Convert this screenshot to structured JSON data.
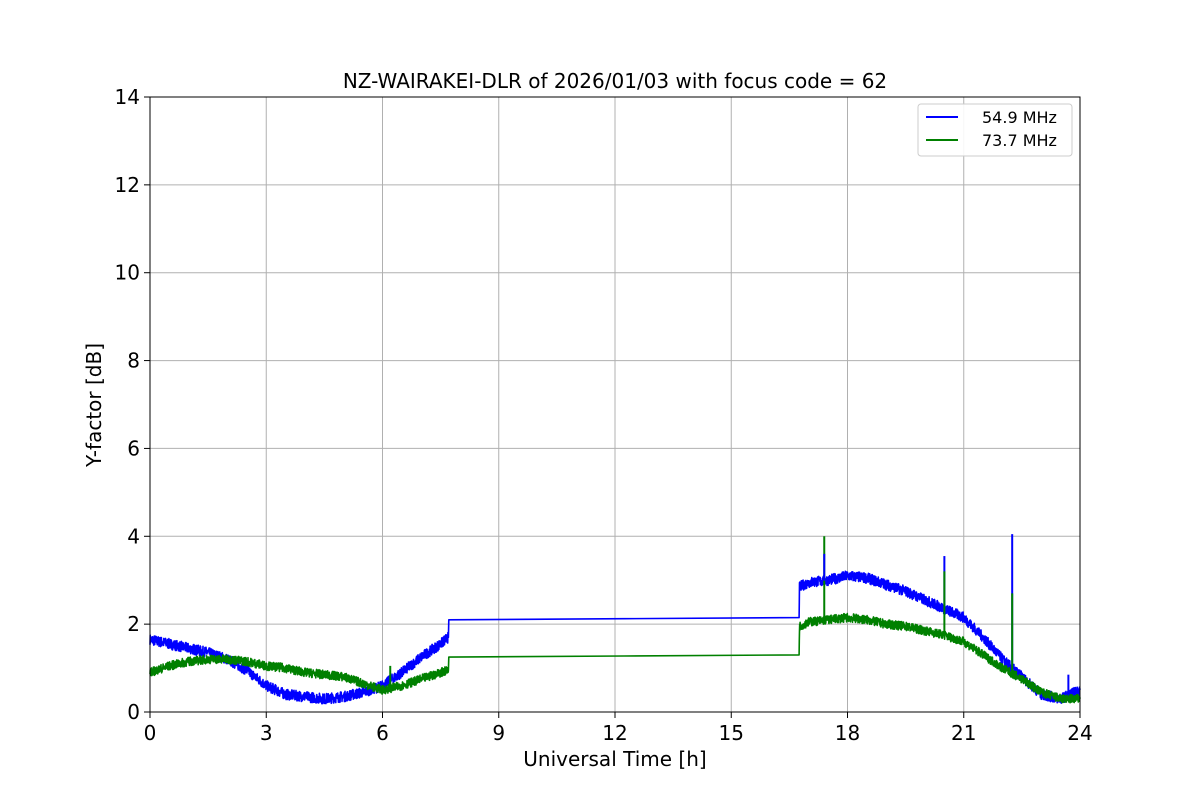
{
  "chart_data": {
    "type": "line",
    "title": "NZ-WAIRAKEI-DLR of 2026/01/03 with focus code = 62",
    "xlabel": "Universal Time [h]",
    "ylabel": "Y-factor [dB]",
    "xlim": [
      0,
      24
    ],
    "ylim": [
      0,
      14
    ],
    "xticks": [
      0,
      3,
      6,
      9,
      12,
      15,
      18,
      21,
      24
    ],
    "yticks": [
      0,
      2,
      4,
      6,
      8,
      10,
      12,
      14
    ],
    "grid": true,
    "legend_position": "top-right",
    "series": [
      {
        "name": "54.9 MHz",
        "color": "#0000ff",
        "noise_amplitude": 0.12,
        "x": [
          0,
          0.5,
          1,
          1.5,
          2,
          2.5,
          3,
          3.5,
          4,
          4.5,
          5,
          5.5,
          6,
          6.5,
          7,
          7.5,
          7.7,
          7.71,
          16.75,
          16.76,
          17,
          17.5,
          18,
          18.5,
          19,
          19.5,
          20,
          20.5,
          21,
          21.5,
          22,
          22.5,
          23,
          23.5,
          24
        ],
        "y": [
          1.65,
          1.55,
          1.45,
          1.35,
          1.2,
          0.95,
          0.6,
          0.4,
          0.35,
          0.3,
          0.35,
          0.45,
          0.6,
          0.9,
          1.25,
          1.55,
          1.7,
          2.1,
          2.15,
          2.85,
          2.95,
          3.0,
          3.1,
          3.05,
          2.9,
          2.75,
          2.55,
          2.35,
          2.15,
          1.7,
          1.2,
          0.8,
          0.4,
          0.3,
          0.5
        ]
      },
      {
        "name": "73.7 MHz",
        "color": "#008000",
        "noise_amplitude": 0.1,
        "x": [
          0,
          0.5,
          1,
          1.5,
          2,
          2.5,
          3,
          3.5,
          4,
          4.5,
          5,
          5.5,
          6,
          6.5,
          7,
          7.5,
          7.7,
          7.71,
          16.75,
          16.76,
          17,
          17.5,
          18,
          18.5,
          19,
          19.5,
          20,
          20.5,
          21,
          21.5,
          22,
          22.5,
          23,
          23.5,
          24
        ],
        "y": [
          0.9,
          1.05,
          1.15,
          1.2,
          1.2,
          1.15,
          1.05,
          1.0,
          0.9,
          0.85,
          0.8,
          0.65,
          0.5,
          0.6,
          0.75,
          0.9,
          0.95,
          1.25,
          1.3,
          1.95,
          2.05,
          2.1,
          2.15,
          2.1,
          2.0,
          1.95,
          1.85,
          1.75,
          1.6,
          1.3,
          1.0,
          0.75,
          0.45,
          0.3,
          0.3
        ]
      }
    ],
    "spikes": [
      {
        "series": 1,
        "x": 17.4,
        "y": 4.0
      },
      {
        "series": 0,
        "x": 17.4,
        "y": 3.6
      },
      {
        "series": 0,
        "x": 20.5,
        "y": 3.55
      },
      {
        "series": 1,
        "x": 20.5,
        "y": 3.2
      },
      {
        "series": 0,
        "x": 22.25,
        "y": 4.05
      },
      {
        "series": 1,
        "x": 22.25,
        "y": 2.7
      },
      {
        "series": 1,
        "x": 6.2,
        "y": 1.05
      },
      {
        "series": 0,
        "x": 23.7,
        "y": 0.85
      }
    ]
  }
}
